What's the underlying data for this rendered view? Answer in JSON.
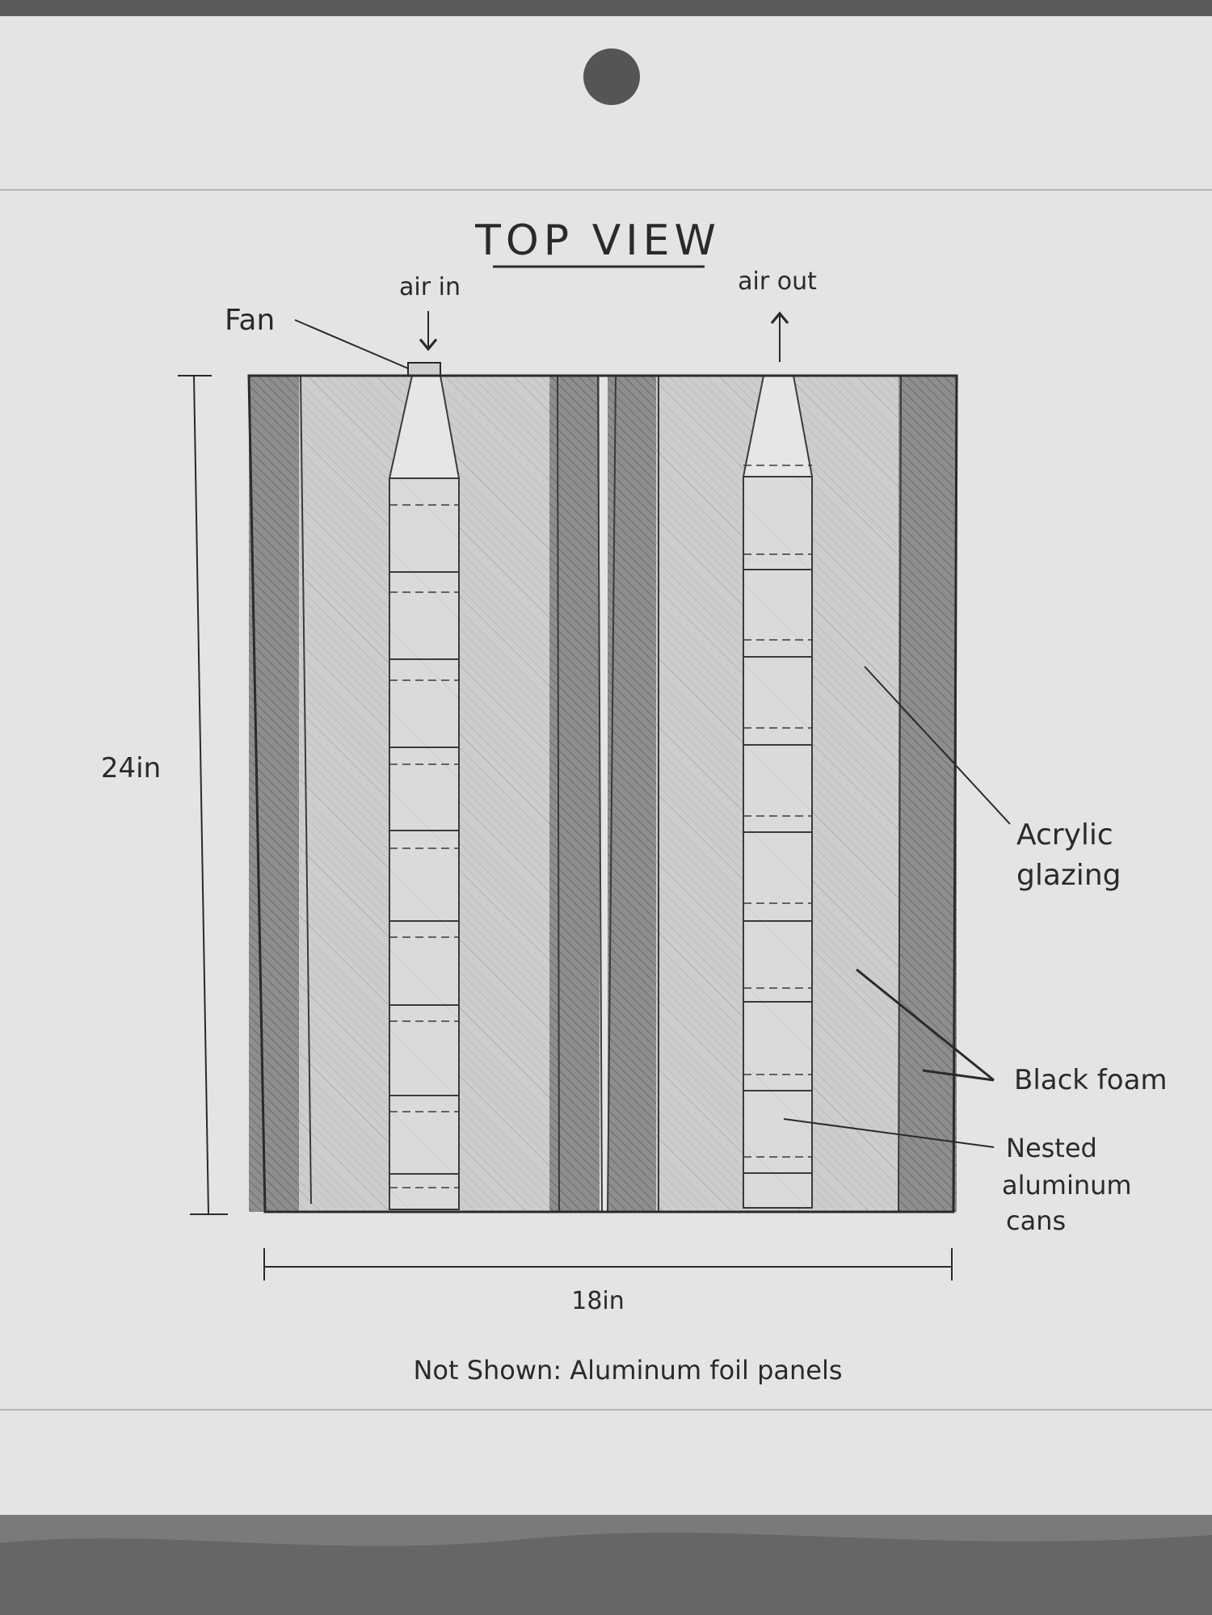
{
  "title": "TOP VIEW",
  "labels": {
    "air_in": "air in",
    "air_out": "air out",
    "fan": "Fan",
    "acrylic_line1": "Acrylic",
    "acrylic_line2": "glazing",
    "black_foam": "Black foam",
    "nested_line1": "Nested",
    "nested_line2": "aluminum",
    "nested_line3": "cans"
  },
  "dimensions": {
    "height": "24in",
    "width": "18in"
  },
  "footnote": "Not Shown: Aluminum foil panels",
  "colors": {
    "paper": "#e4e4e4",
    "ink": "#2a2a2a",
    "foam": "#8a8a8a",
    "acrylic": "#c8c8c8",
    "cans": "#d9d9d9",
    "background": "#6f6f6f"
  }
}
